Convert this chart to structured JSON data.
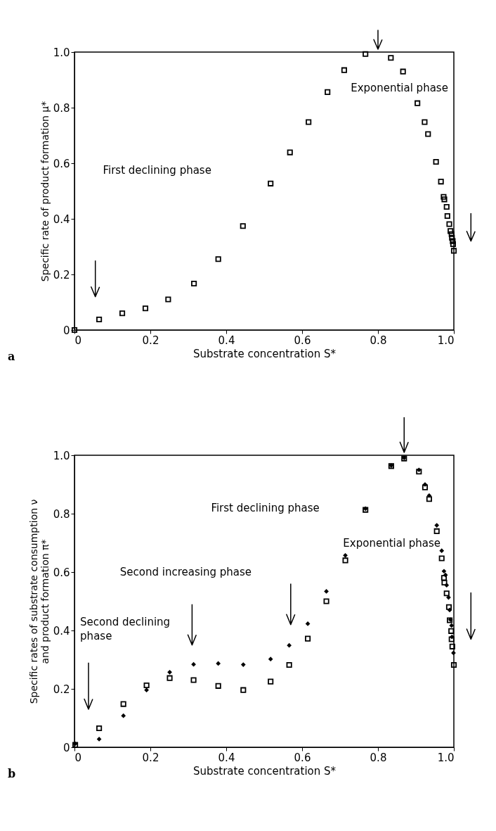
{
  "chart_data": [
    {
      "type": "scatter",
      "xlabel": "Substrate concentration S*",
      "ylabel": "Specific rate of product formation μ*",
      "xlim": [
        0,
        1.0
      ],
      "ylim": [
        0,
        1.0
      ],
      "xticks": [
        0,
        0.2,
        0.4,
        0.6,
        0.8,
        {
          "value": 1.0,
          "label": "1.0"
        }
      ],
      "yticks": [
        0,
        0.2,
        0.4,
        0.6,
        0.8,
        {
          "value": 1.0,
          "label": "1.0"
        }
      ],
      "grid": false,
      "series": [
        {
          "color": "#000000",
          "marker": "square",
          "x": [
            0,
            0.065,
            0.126,
            0.187,
            0.247,
            0.315,
            0.379,
            0.444,
            0.517,
            0.568,
            0.617,
            0.667,
            0.711,
            0.767,
            0.834,
            0.866,
            0.904,
            0.923,
            0.932,
            0.953,
            0.966,
            0.973,
            0.975,
            0.981,
            0.983,
            0.988,
            0.991,
            0.994,
            0.995,
            0.997,
            0.998,
            1.0
          ],
          "values": [
            0,
            0.038,
            0.06,
            0.078,
            0.11,
            0.167,
            0.255,
            0.374,
            0.527,
            0.639,
            0.748,
            0.856,
            0.935,
            0.993,
            0.979,
            0.93,
            0.816,
            0.748,
            0.705,
            0.605,
            0.534,
            0.479,
            0.47,
            0.443,
            0.41,
            0.381,
            0.356,
            0.345,
            0.332,
            0.32,
            0.309,
            0.285
          ]
        }
      ],
      "annotations": [
        "First declining phase",
        "Exponential phase",
        "a"
      ]
    },
    {
      "type": "scatter",
      "xlabel": "Substrate concentration S*",
      "ylabel": "Specific rates of substrate consumption ν\nand product formation π*",
      "xlim": [
        0,
        1.0
      ],
      "ylim": [
        0,
        1.0
      ],
      "xticks": [
        0,
        0.2,
        0.4,
        0.6,
        0.8,
        {
          "value": 1.0,
          "label": "1.0"
        }
      ],
      "yticks": [
        0,
        0.2,
        0.4,
        0.6,
        0.8,
        {
          "value": 1.0,
          "label": "1.0"
        }
      ],
      "grid": false,
      "series": [
        {
          "color": "#000000",
          "marker": "square",
          "x": [
            0.002,
            0.065,
            0.129,
            0.19,
            0.251,
            0.314,
            0.379,
            0.445,
            0.517,
            0.566,
            0.615,
            0.664,
            0.714,
            0.767,
            0.835,
            0.869,
            0.908,
            0.924,
            0.935,
            0.955,
            0.968,
            0.974,
            0.975,
            0.981,
            0.987,
            0.989,
            0.993,
            0.994,
            0.996,
            1.0
          ],
          "values": [
            0.008,
            0.065,
            0.148,
            0.212,
            0.237,
            0.23,
            0.21,
            0.196,
            0.225,
            0.282,
            0.372,
            0.5,
            0.64,
            0.813,
            0.963,
            0.989,
            0.944,
            0.89,
            0.85,
            0.74,
            0.647,
            0.58,
            0.564,
            0.527,
            0.48,
            0.435,
            0.398,
            0.37,
            0.345,
            0.282
          ]
        },
        {
          "color": "#000000",
          "marker": "diamond",
          "x": [
            0.002,
            0.065,
            0.129,
            0.19,
            0.251,
            0.314,
            0.379,
            0.445,
            0.517,
            0.566,
            0.615,
            0.664,
            0.714,
            0.767,
            0.835,
            0.869,
            0.908,
            0.924,
            0.935,
            0.955,
            0.968,
            0.974,
            0.978,
            0.981,
            0.986,
            0.989,
            0.991,
            0.994,
            0.995,
            0.999
          ],
          "values": [
            0.012,
            0.028,
            0.108,
            0.196,
            0.257,
            0.284,
            0.287,
            0.283,
            0.302,
            0.349,
            0.423,
            0.534,
            0.657,
            0.817,
            0.965,
            0.991,
            0.95,
            0.9,
            0.862,
            0.76,
            0.673,
            0.603,
            0.59,
            0.555,
            0.513,
            0.47,
            0.437,
            0.417,
            0.378,
            0.323
          ]
        }
      ],
      "annotations": [
        "First declining phase",
        "Exponential phase",
        "Second increasing phase",
        "Second declining\nphase",
        "b"
      ]
    }
  ]
}
